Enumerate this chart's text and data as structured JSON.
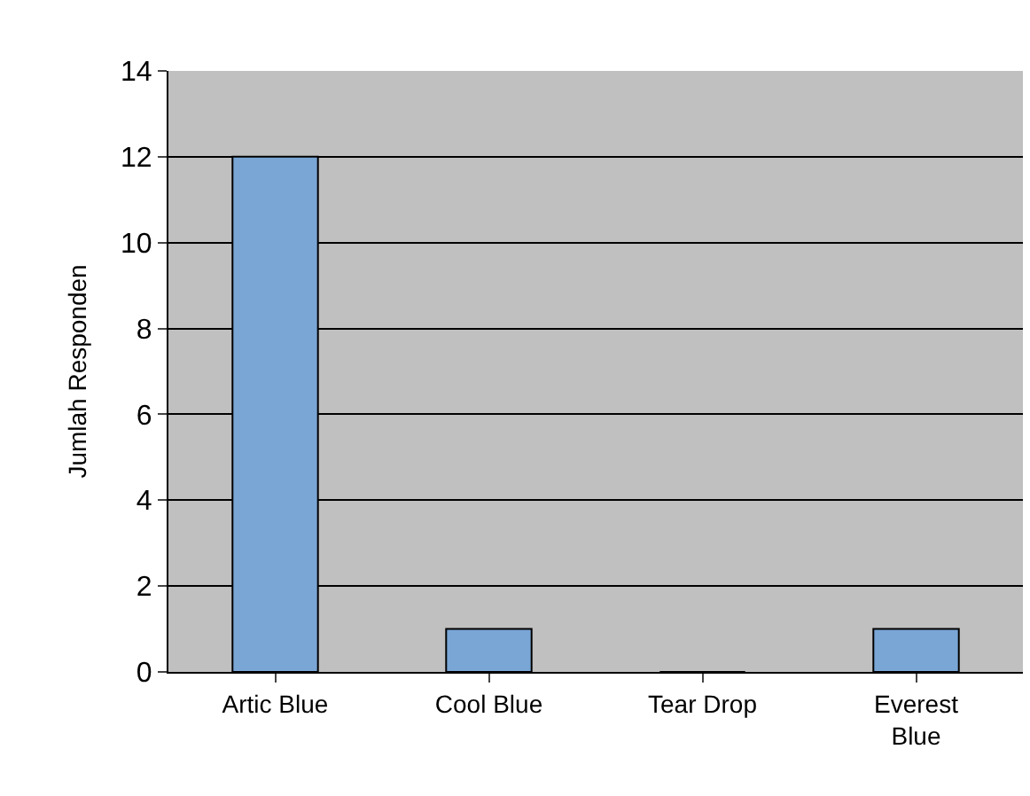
{
  "chart_data": {
    "type": "bar",
    "ylabel": "Jumlah Responden",
    "categories": [
      "Artic Blue",
      "Cool Blue",
      "Tear Drop",
      "Everest Blue"
    ],
    "values": [
      12,
      1,
      0,
      1
    ],
    "color": "#7aa6d6",
    "ylim": [
      0,
      14
    ],
    "yticks": [
      0,
      2,
      4,
      6,
      8,
      10,
      12,
      14
    ],
    "grid": "y",
    "legend": false
  }
}
